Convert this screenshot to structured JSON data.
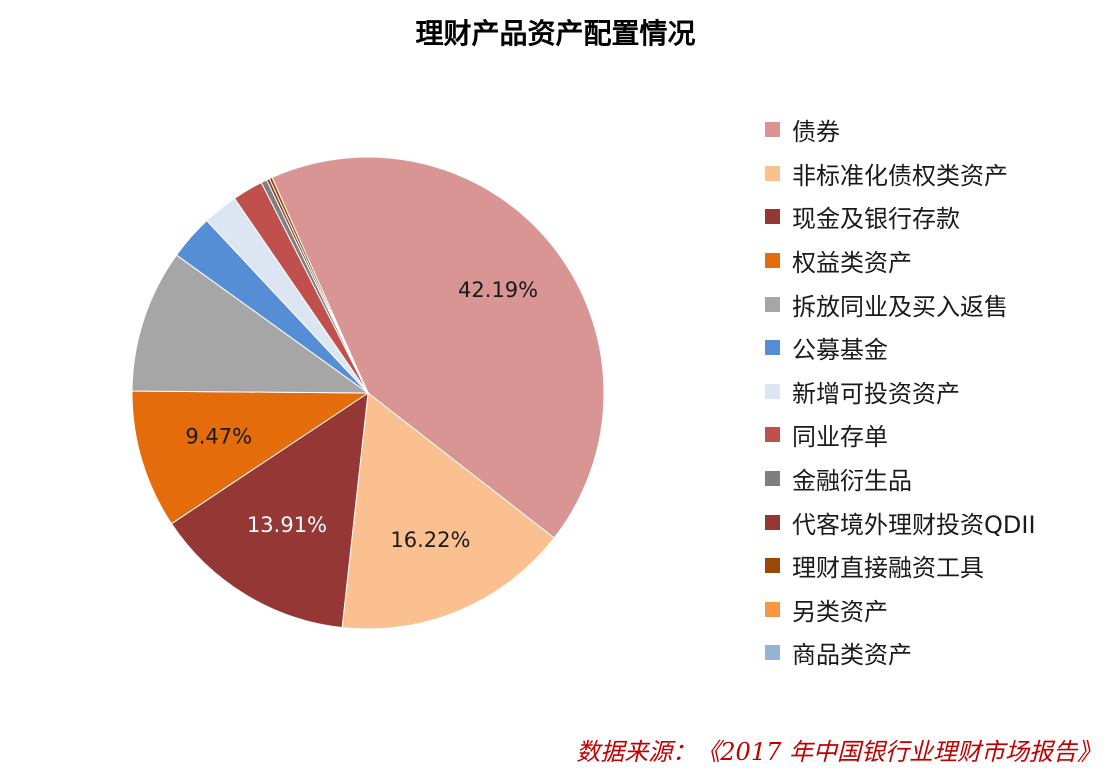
{
  "chart_data": {
    "type": "pie",
    "title": "理财产品资产配置情况",
    "slices": [
      {
        "name": "债券",
        "value": 42.19,
        "label": "42.19%",
        "color": "#d99594"
      },
      {
        "name": "非标准化债权类资产",
        "value": 16.22,
        "label": "16.22%",
        "color": "#fac090"
      },
      {
        "name": "现金及银行存款",
        "value": 13.91,
        "label": "13.91%",
        "color": "#953735"
      },
      {
        "name": "权益类资产",
        "value": 9.47,
        "label": "9.47%",
        "color": "#e46c0a"
      },
      {
        "name": "拆放同业及买入返售",
        "value": 9.8,
        "label": "",
        "color": "#a6a6a6"
      },
      {
        "name": "公募基金",
        "value": 3.1,
        "label": "",
        "color": "#558ed5"
      },
      {
        "name": "新增可投资资产",
        "value": 2.4,
        "label": "",
        "color": "#dce6f2"
      },
      {
        "name": "同业存单",
        "value": 2.1,
        "label": "",
        "color": "#c0504d"
      },
      {
        "name": "金融衍生品",
        "value": 0.4,
        "label": "",
        "color": "#7f7f7f"
      },
      {
        "name": "代客境外理财投资QDII",
        "value": 0.2,
        "label": "",
        "color": "#943634"
      },
      {
        "name": "理财直接融资工具",
        "value": 0.2,
        "label": "",
        "color": "#984807"
      },
      {
        "name": "另类资产",
        "value": 0.0,
        "label": "",
        "color": "#f79646"
      },
      {
        "name": "商品类资产",
        "value": 0.0,
        "label": "",
        "color": "#95b3d7"
      }
    ],
    "legend_position": "right"
  },
  "source_note": "数据来源：《2017 年中国银行业理财市场报告》"
}
